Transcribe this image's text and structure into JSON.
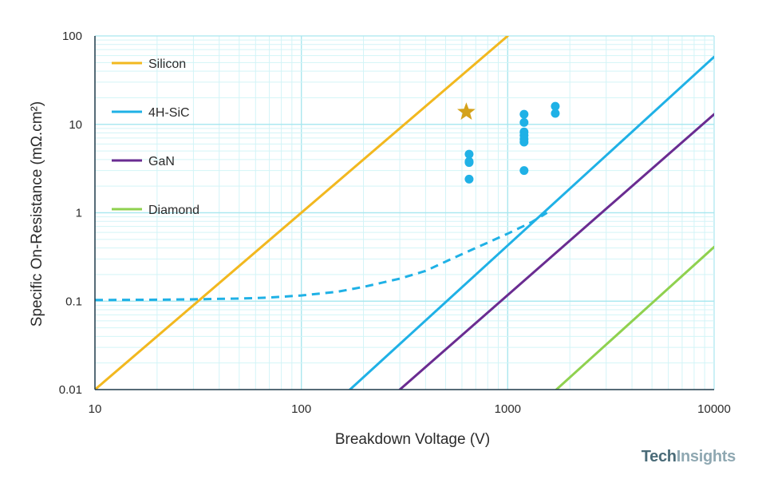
{
  "chart_data": {
    "type": "line",
    "xlabel": "Breakdown Voltage (V)",
    "ylabel": "Specific On-Resistance (mΩ.cm²)",
    "x_scale": "log",
    "y_scale": "log",
    "xlim": [
      10,
      10000
    ],
    "ylim": [
      0.01,
      100
    ],
    "x_ticks": [
      10,
      100,
      1000,
      10000
    ],
    "x_tick_labels": [
      "10",
      "100",
      "1000",
      "10000"
    ],
    "y_ticks": [
      0.01,
      0.1,
      1,
      10,
      100
    ],
    "y_tick_labels": [
      "0.01",
      "0.1",
      "1",
      "10",
      "100"
    ],
    "grid": true,
    "legend_position": "top-left",
    "series": [
      {
        "name": "Silicon",
        "color": "#f2b81f",
        "points": [
          [
            10,
            0.01
          ],
          [
            1000,
            100
          ]
        ]
      },
      {
        "name": "4H-SiC",
        "color": "#1fb1e6",
        "points": [
          [
            172,
            0.01
          ],
          [
            10000,
            58
          ]
        ]
      },
      {
        "name": "GaN",
        "color": "#6a2c91",
        "points": [
          [
            300,
            0.01
          ],
          [
            10000,
            13
          ]
        ]
      },
      {
        "name": "Diamond",
        "color": "#8fd14f",
        "points": [
          [
            1720,
            0.01
          ],
          [
            10000,
            0.41
          ]
        ]
      }
    ],
    "dashed_series": {
      "color": "#1fb1e6",
      "points": [
        [
          10,
          0.103
        ],
        [
          20,
          0.104
        ],
        [
          30,
          0.105
        ],
        [
          50,
          0.107
        ],
        [
          70,
          0.11
        ],
        [
          100,
          0.116
        ],
        [
          150,
          0.128
        ],
        [
          200,
          0.145
        ],
        [
          300,
          0.18
        ],
        [
          400,
          0.22
        ],
        [
          500,
          0.28
        ],
        [
          700,
          0.4
        ],
        [
          1000,
          0.58
        ],
        [
          1300,
          0.78
        ],
        [
          1550,
          1.0
        ]
      ]
    },
    "scatter_points": {
      "color": "#1fb1e6",
      "points": [
        [
          650,
          4.6
        ],
        [
          650,
          3.8
        ],
        [
          650,
          3.7
        ],
        [
          650,
          2.4
        ],
        [
          1200,
          13
        ],
        [
          1200,
          10.5
        ],
        [
          1200,
          8.2
        ],
        [
          1200,
          7.5
        ],
        [
          1200,
          6.8
        ],
        [
          1200,
          6.3
        ],
        [
          1200,
          3.0
        ],
        [
          1700,
          16
        ],
        [
          1700,
          13.3
        ]
      ]
    },
    "star_marker": {
      "color": "#d4a21a",
      "point": [
        630,
        13.8
      ]
    }
  },
  "brand": {
    "part1": "Tech",
    "part2": "Insights"
  }
}
